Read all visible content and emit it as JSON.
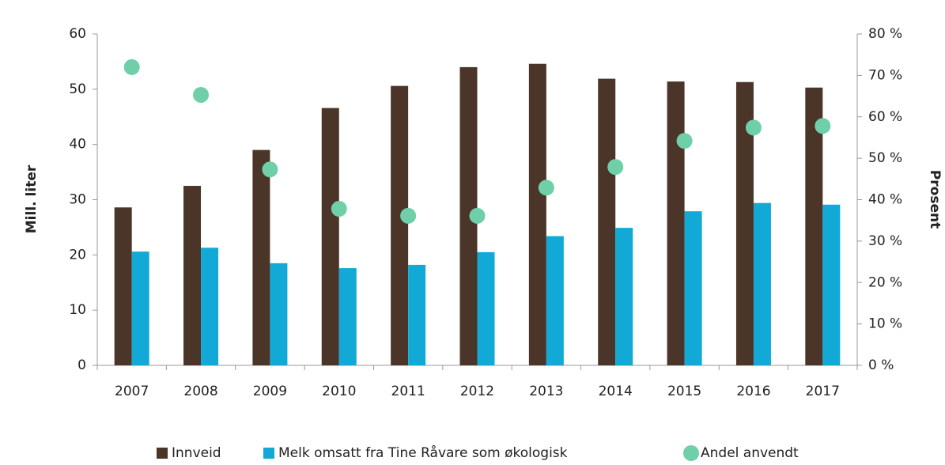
{
  "chart_data": {
    "type": "bar",
    "categories": [
      "2007",
      "2008",
      "2009",
      "2010",
      "2011",
      "2012",
      "2013",
      "2014",
      "2015",
      "2016",
      "2017"
    ],
    "series": [
      {
        "name": "Innveid",
        "color": "#4b3528",
        "values": [
          28.6,
          32.5,
          39,
          46.6,
          50.6,
          54,
          54.6,
          51.9,
          51.4,
          51.3,
          50.3
        ]
      },
      {
        "name": "Melk omsatt fra Tine Råvare som økologisk",
        "color": "#12a9d6",
        "values": [
          20.6,
          21.3,
          18.5,
          17.6,
          18.2,
          20.5,
          23.4,
          24.9,
          27.9,
          29.4,
          29.1
        ]
      },
      {
        "name": "Andel anvendt",
        "color": "#6fcfa8",
        "axis": "y2",
        "type": "scatter",
        "values": [
          72,
          65.3,
          47.3,
          37.8,
          36.1,
          36.1,
          42.9,
          47.9,
          54.2,
          57.4,
          57.8
        ]
      }
    ],
    "y_label": "Mill. liter",
    "y2_label": "Prosent",
    "ylim": [
      0,
      60
    ],
    "yticks": [
      0,
      10,
      20,
      30,
      40,
      50,
      60
    ],
    "y2lim": [
      0,
      80
    ],
    "y2ticks": [
      {
        "value": 0,
        "label": "0 %"
      },
      {
        "value": 10,
        "label": "10 %"
      },
      {
        "value": 20,
        "label": "20 %"
      },
      {
        "value": 30,
        "label": "30 %"
      },
      {
        "value": 40,
        "label": "40 %"
      },
      {
        "value": 50,
        "label": "50 %"
      },
      {
        "value": 60,
        "label": "60 %"
      },
      {
        "value": 70,
        "label": "70 %"
      },
      {
        "value": 80,
        "label": "80 %"
      }
    ],
    "legend": "bottom"
  }
}
